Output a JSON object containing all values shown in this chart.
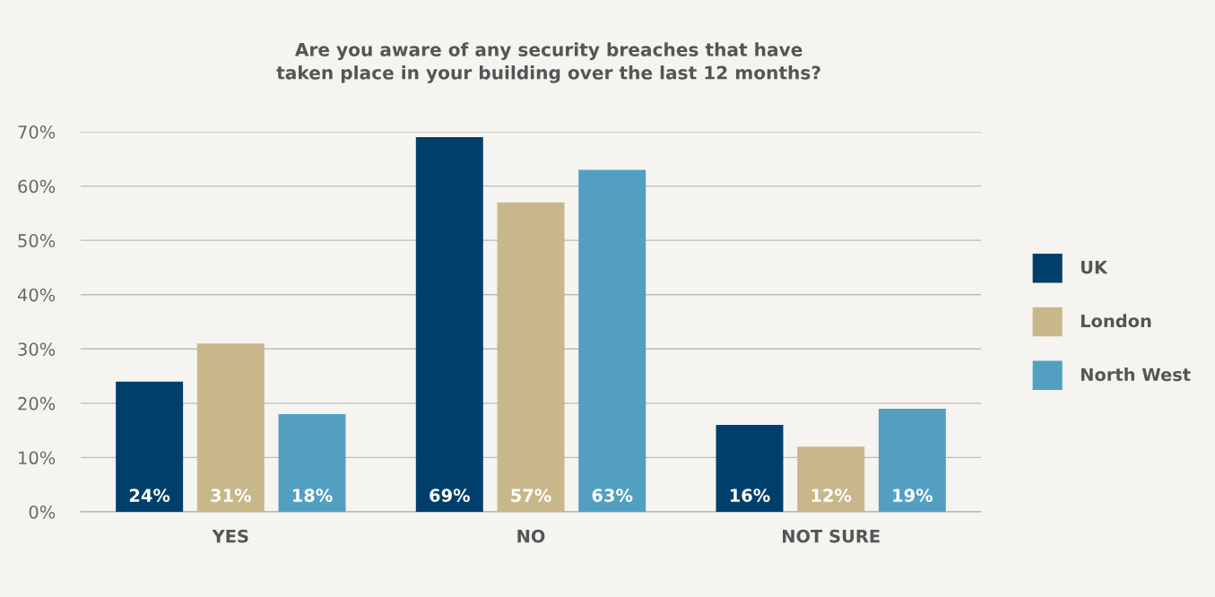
{
  "chart_data": {
    "type": "bar",
    "title": "Are you aware of any security breaches that have\ntaken place in your building over the last 12 months?",
    "categories": [
      "YES",
      "NO",
      "NOT SURE"
    ],
    "series": [
      {
        "name": "UK",
        "color": "#003f6b",
        "values": [
          24,
          69,
          16
        ],
        "value_labels": [
          "24%",
          "69%",
          "16%"
        ]
      },
      {
        "name": "London",
        "color": "#c8b78a",
        "values": [
          31,
          57,
          12
        ],
        "value_labels": [
          "31%",
          "57%",
          "12%"
        ]
      },
      {
        "name": "North West",
        "color": "#529fc2",
        "values": [
          18,
          63,
          19
        ],
        "value_labels": [
          "18%",
          "63%",
          "19%"
        ]
      }
    ],
    "ylim": [
      0,
      70
    ],
    "yticks": [
      {
        "value": 0,
        "label": "0%"
      },
      {
        "value": 10,
        "label": "10%"
      },
      {
        "value": 20,
        "label": "20%"
      },
      {
        "value": 30,
        "label": "30%"
      },
      {
        "value": 40,
        "label": "40%"
      },
      {
        "value": 50,
        "label": "50%"
      },
      {
        "value": 60,
        "label": "60%"
      },
      {
        "value": 70,
        "label": "70%"
      }
    ],
    "grid": "y",
    "legend": "right"
  }
}
